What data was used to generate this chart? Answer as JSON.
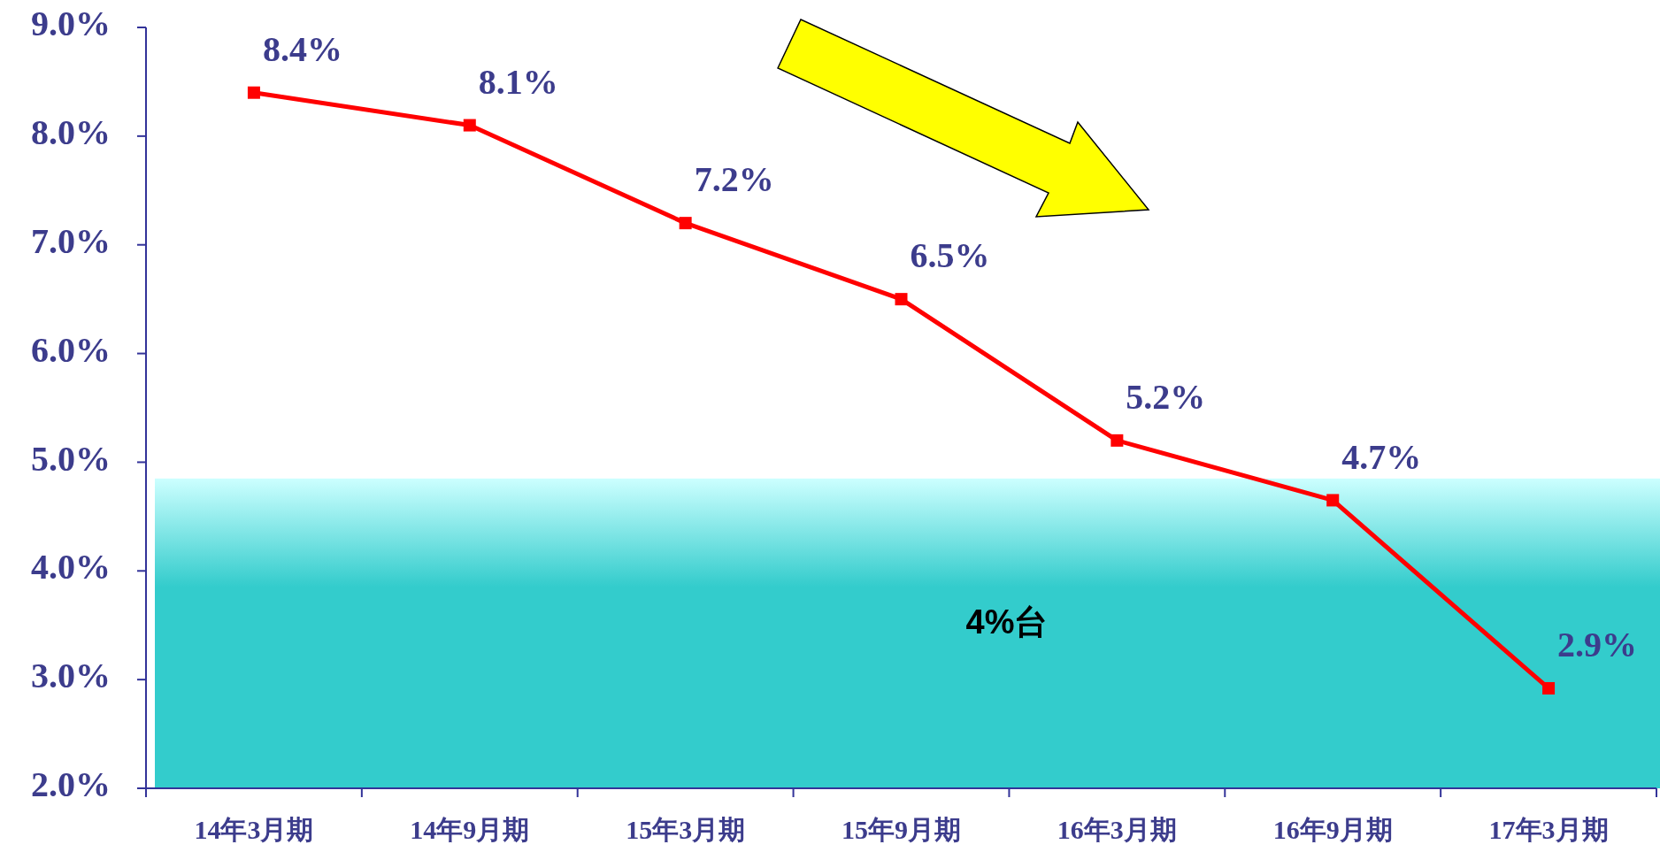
{
  "chart_data": {
    "type": "line",
    "categories": [
      "14年3月期",
      "14年9月期",
      "15年3月期",
      "15年9月期",
      "16年3月期",
      "16年9月期",
      "17年3月期"
    ],
    "series": [
      {
        "color": "#ff0000",
        "values": [
          8.4,
          8.1,
          7.2,
          6.5,
          5.2,
          4.65,
          2.92
        ],
        "value_labels": [
          "8.4%",
          "8.1%",
          "7.2%",
          "6.5%",
          "5.2%",
          "4.7%",
          "2.9%"
        ]
      }
    ],
    "marker": "square",
    "ylim": [
      2.0,
      9.0
    ],
    "yticks": [
      {
        "value": 2,
        "label": "2.0%"
      },
      {
        "value": 3,
        "label": "3.0%"
      },
      {
        "value": 4,
        "label": "4.0%"
      },
      {
        "value": 5,
        "label": "5.0%"
      },
      {
        "value": 6,
        "label": "6.0%"
      },
      {
        "value": 7,
        "label": "7.0%"
      },
      {
        "value": 8,
        "label": "8.0%"
      },
      {
        "value": 9,
        "label": "9.0%"
      }
    ],
    "bands": [
      {
        "axis": "y",
        "from": 2.0,
        "to": 4.85,
        "label": "4%台",
        "color": "#33cccc"
      }
    ]
  }
}
